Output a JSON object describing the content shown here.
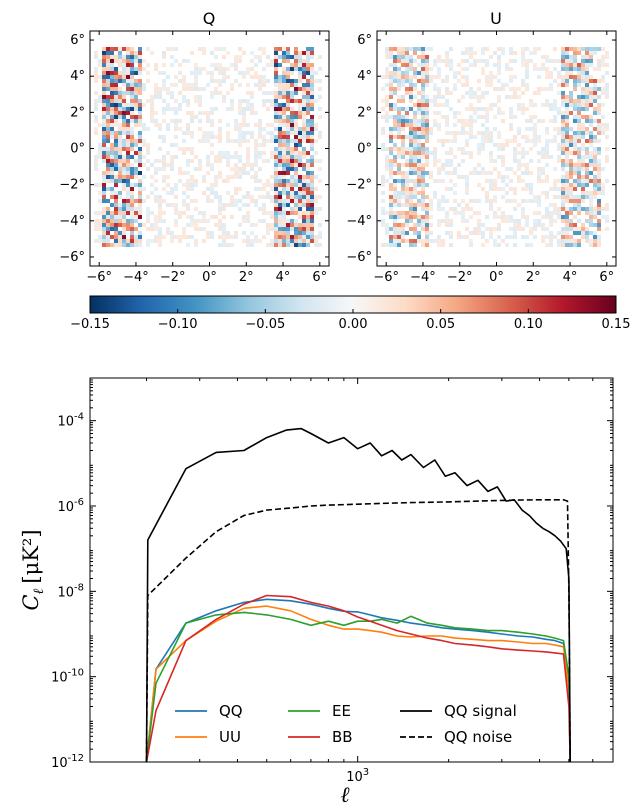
{
  "chart_data": [
    {
      "type": "heatmap",
      "title": "Q",
      "xticks": [
        "−6°",
        "−4°",
        "−2°",
        "0°",
        "2°",
        "4°",
        "6°"
      ],
      "yticks": [
        "6°",
        "4°",
        "2°",
        "0°",
        "−2°",
        "−4°",
        "−6°"
      ],
      "xlim": [
        -6.5,
        6.5
      ],
      "ylim": [
        -6.5,
        6.5
      ],
      "colormap": "RdBu_r"
    },
    {
      "type": "heatmap",
      "title": "U",
      "xticks": [
        "−6°",
        "−4°",
        "−2°",
        "0°",
        "2°",
        "4°",
        "6°"
      ],
      "yticks": [
        "6°",
        "4°",
        "2°",
        "0°",
        "−2°",
        "−4°",
        "−6°"
      ],
      "xlim": [
        -6.5,
        6.5
      ],
      "ylim": [
        -6.5,
        6.5
      ],
      "colormap": "RdBu_r"
    },
    {
      "type": "colorbar",
      "range": [
        -0.15,
        0.15
      ],
      "ticks": [
        "−0.15",
        "−0.10",
        "−0.05",
        "0.00",
        "0.05",
        "0.10",
        "0.15"
      ],
      "colors": [
        "#053061",
        "#2166ac",
        "#4393c3",
        "#92c5de",
        "#d1e5f0",
        "#f7f7f7",
        "#fddbc7",
        "#f4a582",
        "#d6604d",
        "#b2182b",
        "#67001f"
      ]
    },
    {
      "type": "line",
      "xlabel": "ℓ",
      "ylabel": "C",
      "ylabel_sub": "ℓ",
      "ylabel_units": "[μK²]",
      "xscale": "log",
      "yscale": "log",
      "xlim": [
        130,
        7000
      ],
      "ylim": [
        1e-12,
        0.001
      ],
      "xtick_label": {
        "base": "10",
        "exp": "3"
      },
      "yticks": [
        {
          "base": "10",
          "exp": "-12"
        },
        {
          "base": "10",
          "exp": "-10"
        },
        {
          "base": "10",
          "exp": "-8"
        },
        {
          "base": "10",
          "exp": "-6"
        },
        {
          "base": "10",
          "exp": "-4"
        }
      ],
      "legend": "lower center",
      "series": [
        {
          "name": "QQ",
          "color": "#1f77b4",
          "dash": "solid",
          "x": [
            200,
            215,
            270,
            340,
            420,
            500,
            600,
            700,
            800,
            900,
            1000,
            1100,
            1200,
            1350,
            1500,
            1700,
            1900,
            2100,
            2400,
            2700,
            3000,
            3400,
            3800,
            4200,
            4500,
            4800,
            5000,
            5050
          ],
          "y": [
            1e-12,
            1.5e-10,
            1.8e-09,
            3.5e-09,
            5.5e-09,
            6.5e-09,
            6e-09,
            5e-09,
            4e-09,
            3.4e-09,
            3.3e-09,
            2.8e-09,
            2.4e-09,
            2.1e-09,
            1.8e-09,
            1.6e-09,
            1.4e-09,
            1.3e-09,
            1.2e-09,
            1.1e-09,
            1e-09,
            9e-10,
            8.5e-10,
            7.5e-10,
            7e-10,
            6e-10,
            1e-10,
            1e-12
          ]
        },
        {
          "name": "UU",
          "color": "#ff7f0e",
          "dash": "solid",
          "x": [
            200,
            215,
            270,
            340,
            420,
            500,
            600,
            700,
            800,
            900,
            1000,
            1100,
            1200,
            1350,
            1500,
            1700,
            1900,
            2100,
            2400,
            2700,
            3000,
            3400,
            3800,
            4200,
            4500,
            4800,
            5000,
            5050
          ],
          "y": [
            1e-12,
            1.5e-10,
            7e-10,
            2e-09,
            4e-09,
            4.5e-09,
            3.5e-09,
            2.2e-09,
            1.6e-09,
            1.3e-09,
            1.3e-09,
            1.2e-09,
            1.1e-09,
            9e-10,
            8.5e-10,
            9e-10,
            9e-10,
            8e-10,
            7.5e-10,
            7e-10,
            7e-10,
            6.5e-10,
            6e-10,
            6e-10,
            5.5e-10,
            5e-10,
            5e-11,
            1e-12
          ]
        },
        {
          "name": "EE",
          "color": "#2ca02c",
          "dash": "solid",
          "x": [
            200,
            215,
            270,
            340,
            420,
            500,
            600,
            700,
            800,
            900,
            1000,
            1100,
            1200,
            1350,
            1500,
            1700,
            1900,
            2100,
            2400,
            2700,
            3000,
            3400,
            3800,
            4200,
            4500,
            4800,
            5000,
            5050
          ],
          "y": [
            1e-12,
            7e-11,
            1.8e-09,
            2.8e-09,
            3.2e-09,
            2.8e-09,
            2.2e-09,
            1.6e-09,
            2e-09,
            1.6e-09,
            2e-09,
            2e-09,
            2.2e-09,
            1.8e-09,
            2.6e-09,
            1.8e-09,
            1.6e-09,
            1.4e-09,
            1.3e-09,
            1.2e-09,
            1.2e-09,
            1.1e-09,
            1e-09,
            9e-10,
            8e-10,
            7e-10,
            1e-10,
            1e-12
          ]
        },
        {
          "name": "BB",
          "color": "#d62728",
          "dash": "solid",
          "x": [
            200,
            215,
            270,
            340,
            420,
            500,
            600,
            700,
            800,
            900,
            1000,
            1100,
            1200,
            1350,
            1500,
            1700,
            1900,
            2100,
            2400,
            2700,
            3000,
            3400,
            3800,
            4200,
            4500,
            4800,
            5000,
            5050
          ],
          "y": [
            1e-12,
            1.6e-11,
            7e-10,
            2.2e-09,
            5e-09,
            8e-09,
            7.5e-09,
            5.5e-09,
            4.5e-09,
            3.5e-09,
            2.5e-09,
            2e-09,
            1.6e-09,
            1.2e-09,
            1e-09,
            8e-10,
            7e-10,
            6e-10,
            5.5e-10,
            5e-10,
            4.5e-10,
            4.2e-10,
            4e-10,
            3.8e-10,
            3.6e-10,
            3.4e-10,
            2e-11,
            1e-12
          ]
        },
        {
          "name": "QQ signal",
          "color": "#000000",
          "dash": "solid",
          "x": [
            200,
            202,
            270,
            340,
            420,
            500,
            580,
            650,
            700,
            800,
            900,
            1000,
            1100,
            1200,
            1300,
            1400,
            1500,
            1650,
            1800,
            1950,
            2100,
            2300,
            2500,
            2700,
            2900,
            3100,
            3300,
            3500,
            3700,
            3900,
            4100,
            4300,
            4500,
            4700,
            4900,
            5000,
            5050
          ],
          "y": [
            1e-12,
            1.6e-07,
            7.5e-06,
            1.8e-05,
            2e-05,
            4e-05,
            6e-05,
            6.5e-05,
            5e-05,
            3e-05,
            4e-05,
            2.2e-05,
            3e-05,
            1.5e-05,
            2e-05,
            1.2e-05,
            1.6e-05,
            8e-06,
            1.2e-05,
            5e-06,
            6e-06,
            3e-06,
            4e-06,
            2.2e-06,
            2.8e-06,
            1.3e-06,
            1.4e-06,
            8e-07,
            6e-07,
            4e-07,
            3e-07,
            2.5e-07,
            2e-07,
            1.5e-07,
            1e-07,
            2e-08,
            1e-12
          ]
        },
        {
          "name": "QQ noise",
          "color": "#000000",
          "dash": "dashed",
          "x": [
            200,
            202,
            270,
            340,
            420,
            500,
            600,
            700,
            800,
            1000,
            1200,
            1500,
            2000,
            2500,
            3000,
            3500,
            4000,
            4500,
            4800,
            4950,
            5000,
            5050
          ],
          "y": [
            1e-12,
            8e-09,
            6e-08,
            2.5e-07,
            6e-07,
            8e-07,
            9e-07,
            1e-06,
            1.05e-06,
            1.1e-06,
            1.15e-06,
            1.2e-06,
            1.25e-06,
            1.3e-06,
            1.35e-06,
            1.38e-06,
            1.4e-06,
            1.4e-06,
            1.4e-06,
            1.3e-06,
            1e-08,
            1e-12
          ]
        }
      ]
    }
  ]
}
